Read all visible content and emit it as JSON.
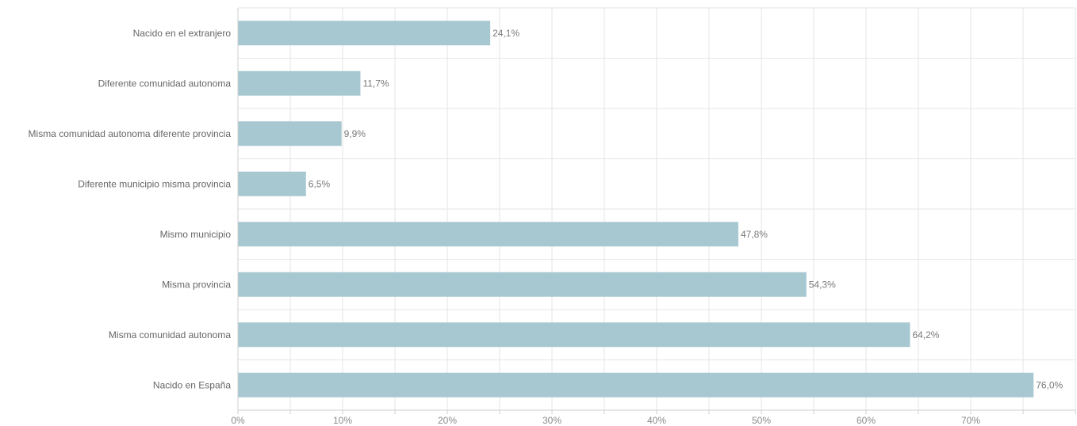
{
  "chart_data": {
    "type": "bar",
    "orientation": "horizontal",
    "title": "",
    "xlabel": "",
    "ylabel": "",
    "categories": [
      "Nacido en el extranjero",
      "Diferente comunidad autonoma",
      "Misma comunidad autonoma diferente provincia",
      "Diferente municipio misma provincia",
      "Mismo municipio",
      "Misma provincia",
      "Misma comunidad autonoma",
      "Nacido en España"
    ],
    "values": [
      24.1,
      11.7,
      9.9,
      6.5,
      47.8,
      54.3,
      64.2,
      76.0
    ],
    "value_labels": [
      "24,1%",
      "11,7%",
      "9,9%",
      "6,5%",
      "47,8%",
      "54,3%",
      "64,2%",
      "76,0%"
    ],
    "xlim": [
      0,
      80
    ],
    "x_ticks": [
      0,
      10,
      20,
      30,
      40,
      50,
      60,
      70
    ],
    "x_tick_labels": [
      "0%",
      "10%",
      "20%",
      "30%",
      "40%",
      "50%",
      "60%",
      "70%"
    ],
    "grid": true,
    "legend": "none",
    "colors": {
      "bar": "#a7c8d1",
      "grid": "#e6e6e6",
      "axis": "#cfcfcf"
    }
  }
}
